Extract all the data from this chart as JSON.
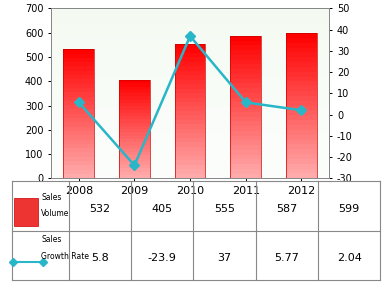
{
  "years": [
    "2008",
    "2009",
    "2010",
    "2011",
    "2012"
  ],
  "sales_volume": [
    532,
    405,
    555,
    587,
    599
  ],
  "growth_rate": [
    5.8,
    -23.9,
    37,
    5.77,
    2.04
  ],
  "line_color": "#29b6c8",
  "marker_color": "#29b6c8",
  "left_ylim": [
    0,
    700
  ],
  "left_yticks": [
    0,
    100,
    200,
    300,
    400,
    500,
    600,
    700
  ],
  "right_ylim": [
    -30,
    50
  ],
  "right_yticks": [
    -30,
    -20,
    -10,
    0,
    10,
    20,
    30,
    40,
    50
  ],
  "row1_values": [
    "532",
    "405",
    "555",
    "587",
    "599"
  ],
  "row2_values": [
    "5.8",
    "-23.9",
    "37",
    "5.77",
    "2.04"
  ]
}
